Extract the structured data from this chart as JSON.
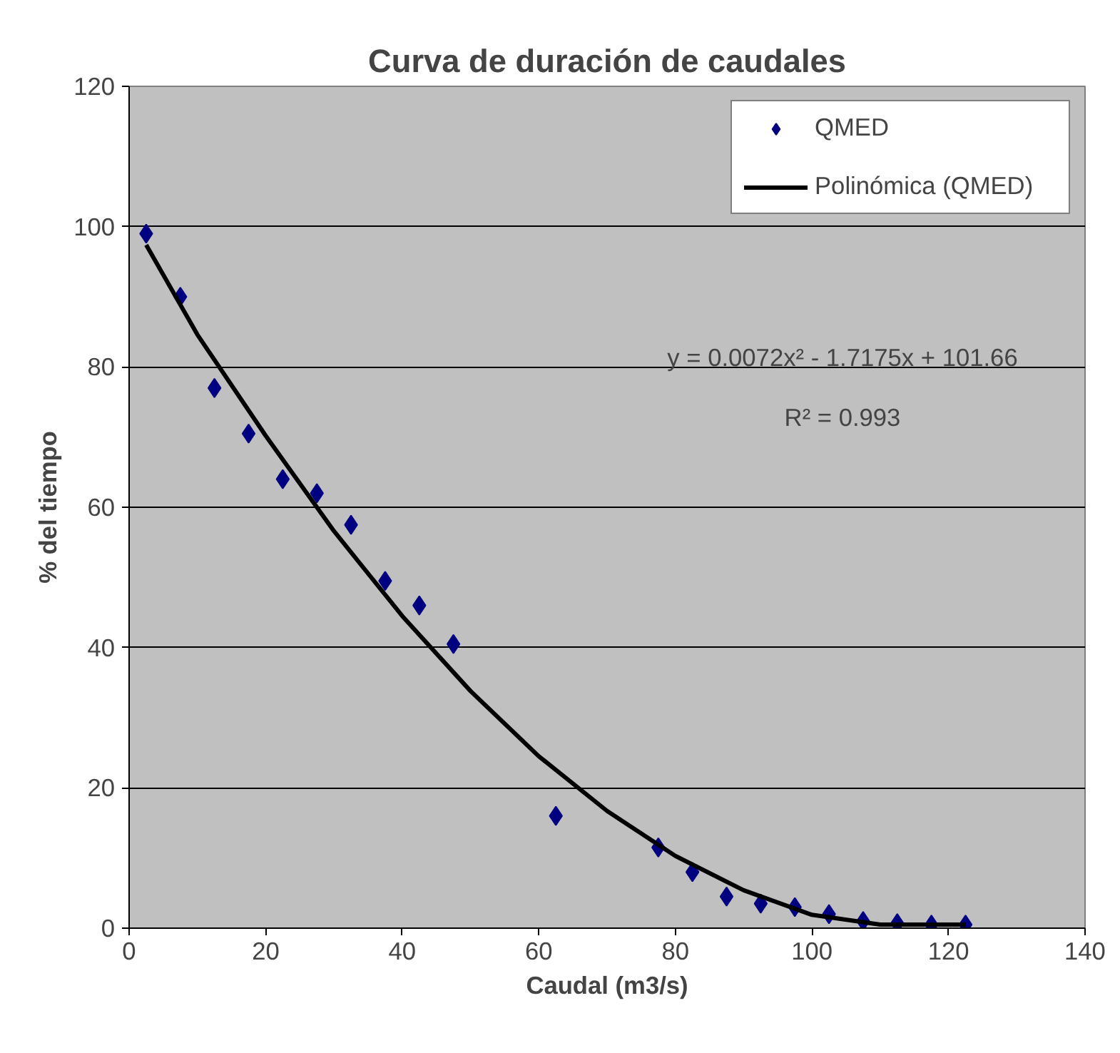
{
  "chart_data": {
    "type": "scatter",
    "title": "Curva de duración de caudales",
    "xlabel": "Caudal (m3/s)",
    "ylabel": "% del tiempo",
    "x": [
      2.5,
      7.5,
      12.5,
      17.5,
      22.5,
      27.5,
      32.5,
      37.5,
      42.5,
      47.5,
      62.5,
      77.5,
      82.5,
      87.5,
      92.5,
      97.5,
      102.5,
      107.5,
      112.5,
      117.5,
      122.5
    ],
    "series": [
      {
        "name": "QMED",
        "color": "#000080",
        "marker": "diamond",
        "values": [
          99,
          90,
          77,
          70.5,
          64,
          62,
          57.5,
          49.5,
          46,
          40.5,
          16,
          11.5,
          8,
          4.5,
          3.5,
          3,
          2,
          1,
          0.7,
          0.5,
          0.5
        ]
      },
      {
        "name": "Polinómica (QMED)",
        "type": "line",
        "color": "#000000",
        "marker": "none",
        "line_style": "solid",
        "x": [
          2.5,
          10,
          20,
          30,
          40,
          50,
          60,
          70,
          80,
          90,
          100,
          110,
          122.5
        ],
        "values": [
          97.4,
          84.6,
          70.2,
          56.6,
          44.5,
          33.8,
          24.5,
          16.7,
          10.3,
          5.4,
          1.9,
          0.5,
          0.5
        ]
      }
    ],
    "annotations": [
      "y = 0.0072x² - 1.7175x + 101.66",
      "R² = 0.993"
    ],
    "xlim": [
      0,
      140
    ],
    "xticks": [
      0,
      20,
      40,
      60,
      80,
      100,
      120,
      140
    ],
    "ylim": [
      0,
      120
    ],
    "yticks": [
      0,
      20,
      40,
      60,
      80,
      100,
      120
    ],
    "grid": "y",
    "legend": "top right"
  }
}
